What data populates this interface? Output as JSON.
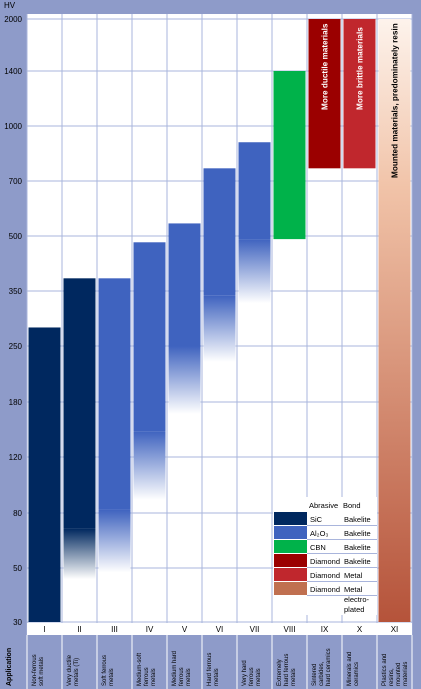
{
  "chart_data": {
    "type": "bar",
    "ylabel": "HV",
    "y_axis_scale": "log",
    "ylim": [
      30,
      2000
    ],
    "y_ticks": [
      "2000",
      "1400",
      "1000",
      "700",
      "500",
      "350",
      "250",
      "180",
      "120",
      "80",
      "50",
      "30"
    ],
    "categories": [
      "I",
      "II",
      "III",
      "IV",
      "V",
      "VI",
      "VII",
      "VIII",
      "IX",
      "X",
      "XI"
    ],
    "row_label": "Application",
    "applications": [
      "Non-ferrous soft metals",
      "Very ductile metals (Ti)",
      "Soft ferrous metals",
      "Medium-soft ferrous metals",
      "Medium hard ferrous metals",
      "Hard ferrous metals",
      "Very hard ferrous metals",
      "Extremely hard ferrous metals",
      "Sintered carbides, hard ceramics",
      "Minerals and ceramics",
      "Plastics and resins, mounted materials"
    ],
    "bars": [
      {
        "category": "I",
        "abrasive": "SiC",
        "bottom": 30,
        "top": 280
      },
      {
        "category": "II",
        "abrasive": "SiC",
        "bottom": 30,
        "top": 380,
        "fade_bottom": 45,
        "fade_top": 70
      },
      {
        "category": "III",
        "abrasive": "Al2O3",
        "bottom": 30,
        "top": 380,
        "fade_bottom": 48,
        "fade_top": 82
      },
      {
        "category": "IV",
        "abrasive": "Al2O3",
        "bottom": 30,
        "top": 480,
        "fade_bottom": 88,
        "fade_top": 145
      },
      {
        "category": "V",
        "abrasive": "Al2O3",
        "bottom": 30,
        "top": 540,
        "fade_bottom": 165,
        "fade_top": 250
      },
      {
        "category": "VI",
        "abrasive": "Al2O3",
        "bottom": 30,
        "top": 760,
        "fade_bottom": 228,
        "fade_top": 340
      },
      {
        "category": "VII",
        "abrasive": "Al2O3",
        "bottom": 30,
        "top": 900,
        "fade_bottom": 325,
        "fade_top": 490
      },
      {
        "category": "VIII",
        "abrasive": "CBN",
        "bottom": 490,
        "top": 1400
      },
      {
        "category": "IX",
        "abrasive": "Diamond / Bakelite",
        "bottom": 760,
        "top": 2000,
        "label": "More ductile materials"
      },
      {
        "category": "X",
        "abrasive": "Diamond / Metal",
        "bottom": 760,
        "top": 2000,
        "label": "More brittle materials"
      },
      {
        "category": "XI",
        "abrasive": "Diamond / Metal electro-plated",
        "bottom": 30,
        "top": 2000,
        "label": "Mounted materials, predominately resin"
      }
    ],
    "legend": {
      "headers": [
        "Abrasive",
        "Bond"
      ],
      "rows": [
        {
          "abrasive": "SiC",
          "bond": "Bakelite",
          "color": "#00285f"
        },
        {
          "abrasive": "Al₂O₃",
          "bond": "Bakelite",
          "color": "#3f63bf"
        },
        {
          "abrasive": "CBN",
          "bond": "Bakelite",
          "color": "#00b24a"
        },
        {
          "abrasive": "Diamond",
          "bond": "Bakelite",
          "color": "#9b0000"
        },
        {
          "abrasive": "Diamond",
          "bond": "Metal",
          "color": "#c0272d"
        },
        {
          "abrasive": "Diamond",
          "bond": "Metal electro-plated",
          "color": "#c07050"
        }
      ]
    },
    "colors": {
      "frame_background": "#8e9bc9",
      "plot_background": "#ffffff",
      "grid": "#a9b5dc",
      "sic": "#00285f",
      "al2o3": "#3f63bf",
      "cbn": "#00b24a",
      "diamond_bakelite": "#9b0000",
      "diamond_metal": "#c0272d",
      "electroplated_top": "#f7e4d8",
      "electroplated_bottom": "#b5533a"
    }
  }
}
